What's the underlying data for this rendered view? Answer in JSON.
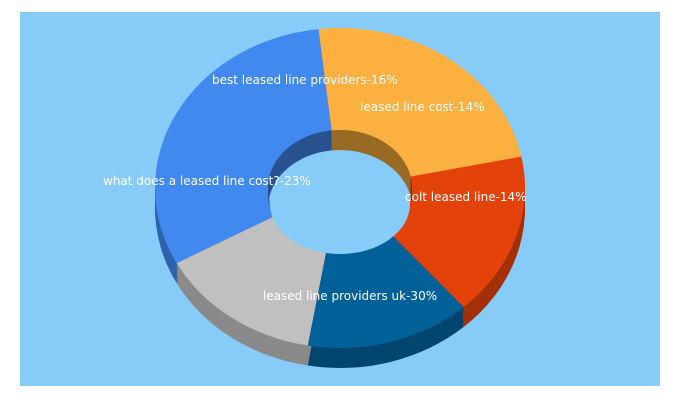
{
  "colors": {
    "panel_bg": "#87CCF9",
    "label_text": "#FFFFFF"
  },
  "chart_data": {
    "type": "pie",
    "style": "3d-donut",
    "grid": false,
    "legend": "none",
    "slices": [
      {
        "label": "leased line providers uk",
        "value": 30,
        "display": "leased line providers uk-30%",
        "color": "#4189EE"
      },
      {
        "label": "what does a leased line cost?",
        "value": 23,
        "display": "what does a leased line cost?-23%",
        "color": "#FBB03F"
      },
      {
        "label": "best leased line providers",
        "value": 16,
        "display": "best leased line providers-16%",
        "color": "#E3430A"
      },
      {
        "label": "leased line cost",
        "value": 14,
        "display": "leased line cost-14%",
        "color": "#03619A"
      },
      {
        "label": "colt leased line",
        "value": 14,
        "display": "colt leased line-14%",
        "color": "#C0C0C0"
      }
    ]
  }
}
